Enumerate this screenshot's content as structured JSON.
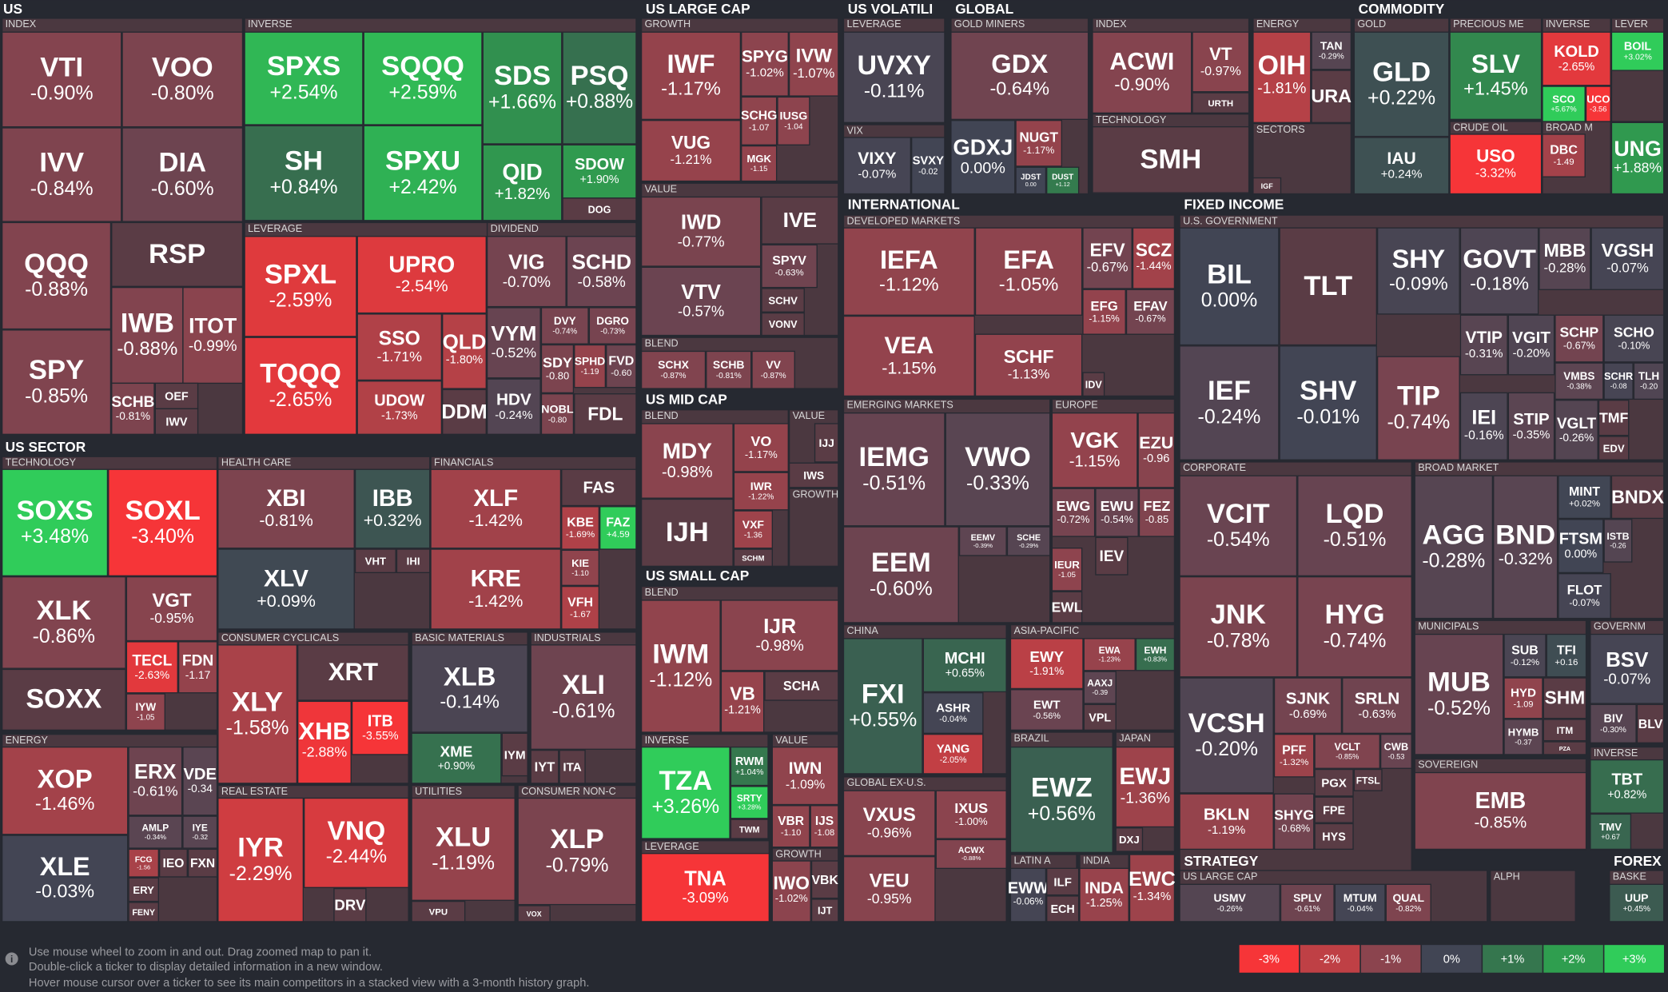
{
  "sections": [
    "US",
    "US SECTOR",
    "US LARGE CAP",
    "US VOLATILI",
    "GLOBAL",
    "COMMODITY",
    "INTERNATIONAL",
    "FIXED INCOME",
    "US MID CAP",
    "US SMALL CAP",
    "STRATEGY",
    "FOREX"
  ],
  "groups": [
    "INDEX",
    "INVERSE",
    "LEVERAGE",
    "DIVIDEND",
    "TECHNOLOGY",
    "HEALTH CARE",
    "FINANCIALS",
    "CONSUMER CYCLICALS",
    "BASIC MATERIALS",
    "INDUSTRIALS",
    "ENERGY",
    "REAL ESTATE",
    "UTILITIES",
    "CONSUMER NON-C",
    "GROWTH",
    "VALUE",
    "BLEND",
    "BLEND",
    "VALUE",
    "GROWTH",
    "BLEND",
    "INVERSE",
    "VALUE",
    "LEVERAGE",
    "GROWTH",
    "LEVERAGE",
    "VIX",
    "GOLD MINERS",
    "INDEX",
    "TECHNOLOGY",
    "ENERGY",
    "SECTORS",
    "GOLD",
    "PRECIOUS ME",
    "INVERSE",
    "LEVER",
    "CRUDE OIL",
    "BROAD M",
    "DEVELOPED MARKETS",
    "EMERGING MARKETS",
    "EUROPE",
    "CHINA",
    "ASIA-PACIFIC",
    "GLOBAL EX-U.S.",
    "BRAZIL",
    "JAPAN",
    "LATIN A",
    "INDIA",
    "U.S. GOVERNMENT",
    "CORPORATE",
    "BROAD MARKET",
    "MUNICIPALS",
    "GOVERNM",
    "SOVEREIGN",
    "INVERSE",
    "US LARGE CAP",
    "ALPH",
    "BASKE"
  ],
  "tiles": [
    {
      "ticker": "VTI",
      "change": "-0.90%"
    },
    {
      "ticker": "VOO",
      "change": "-0.80%"
    },
    {
      "ticker": "IVV",
      "change": "-0.84%"
    },
    {
      "ticker": "DIA",
      "change": "-0.60%"
    },
    {
      "ticker": "QQQ",
      "change": "-0.88%"
    },
    {
      "ticker": "RSP"
    },
    {
      "ticker": "IWB",
      "change": "-0.88%"
    },
    {
      "ticker": "ITOT",
      "change": "-0.99%"
    },
    {
      "ticker": "SPY",
      "change": "-0.85%"
    },
    {
      "ticker": "SCHB",
      "change": "-0.81%"
    },
    {
      "ticker": "OEF"
    },
    {
      "ticker": "IWV"
    },
    {
      "ticker": "SPXS",
      "change": "+2.54%"
    },
    {
      "ticker": "SQQQ",
      "change": "+2.59%"
    },
    {
      "ticker": "SH",
      "change": "+0.84%"
    },
    {
      "ticker": "SPXU",
      "change": "+2.42%"
    },
    {
      "ticker": "SDS",
      "change": "+1.66%"
    },
    {
      "ticker": "PSQ",
      "change": "+0.88%"
    },
    {
      "ticker": "QID",
      "change": "+1.82%"
    },
    {
      "ticker": "SDOW",
      "change": "+1.90%"
    },
    {
      "ticker": "DOG"
    },
    {
      "ticker": "SPXL",
      "change": "-2.59%"
    },
    {
      "ticker": "UPRO",
      "change": "-2.54%"
    },
    {
      "ticker": "TQQQ",
      "change": "-2.65%"
    },
    {
      "ticker": "SSO",
      "change": "-1.71%"
    },
    {
      "ticker": "QLD",
      "change": "-1.80%"
    },
    {
      "ticker": "UDOW",
      "change": "-1.73%"
    },
    {
      "ticker": "DDM"
    },
    {
      "ticker": "VIG",
      "change": "-0.70%"
    },
    {
      "ticker": "SCHD",
      "change": "-0.58%"
    },
    {
      "ticker": "VYM",
      "change": "-0.52%"
    },
    {
      "ticker": "DVY",
      "change": "-0.74%"
    },
    {
      "ticker": "DGRO",
      "change": "-0.73%"
    },
    {
      "ticker": "SDY",
      "change": "-0.80"
    },
    {
      "ticker": "SPHD",
      "change": "-1.19"
    },
    {
      "ticker": "FVD",
      "change": "-0.60"
    },
    {
      "ticker": "HDV",
      "change": "-0.24%"
    },
    {
      "ticker": "NOBL",
      "change": "-0.80"
    },
    {
      "ticker": "FDL"
    },
    {
      "ticker": "SOXS",
      "change": "+3.48%"
    },
    {
      "ticker": "SOXL",
      "change": "-3.40%"
    },
    {
      "ticker": "XLK",
      "change": "-0.86%"
    },
    {
      "ticker": "VGT",
      "change": "-0.95%"
    },
    {
      "ticker": "TECL",
      "change": "-2.63%"
    },
    {
      "ticker": "FDN",
      "change": "-1.17"
    },
    {
      "ticker": "SOXX"
    },
    {
      "ticker": "IYW",
      "change": "-1.05"
    },
    {
      "ticker": "XBI",
      "change": "-0.81%"
    },
    {
      "ticker": "IBB",
      "change": "+0.32%"
    },
    {
      "ticker": "VHT"
    },
    {
      "ticker": "IHI"
    },
    {
      "ticker": "XLV",
      "change": "+0.09%"
    },
    {
      "ticker": "XLF",
      "change": "-1.42%"
    },
    {
      "ticker": "FAS"
    },
    {
      "ticker": "KBE",
      "change": "-1.69%"
    },
    {
      "ticker": "FAZ",
      "change": "+4.59"
    },
    {
      "ticker": "KRE",
      "change": "-1.42%"
    },
    {
      "ticker": "KIE",
      "change": "-1.10"
    },
    {
      "ticker": "VFH",
      "change": "-1.67"
    },
    {
      "ticker": "XLY",
      "change": "-1.58%"
    },
    {
      "ticker": "XRT"
    },
    {
      "ticker": "XHB",
      "change": "-2.88%"
    },
    {
      "ticker": "ITB",
      "change": "-3.55%"
    },
    {
      "ticker": "XLB",
      "change": "-0.14%"
    },
    {
      "ticker": "XME",
      "change": "+0.90%"
    },
    {
      "ticker": "IYM"
    },
    {
      "ticker": "XLI",
      "change": "-0.61%"
    },
    {
      "ticker": "IYT"
    },
    {
      "ticker": "ITA"
    },
    {
      "ticker": "XOP",
      "change": "-1.46%"
    },
    {
      "ticker": "ERX",
      "change": "-0.61%"
    },
    {
      "ticker": "VDE",
      "change": "-0.34"
    },
    {
      "ticker": "AMLP",
      "change": "-0.34%"
    },
    {
      "ticker": "IYE",
      "change": "-0.32"
    },
    {
      "ticker": "XLE",
      "change": "-0.03%"
    },
    {
      "ticker": "FCG",
      "change": "-1.56"
    },
    {
      "ticker": "IEO"
    },
    {
      "ticker": "FXN"
    },
    {
      "ticker": "ERY"
    },
    {
      "ticker": "FENY"
    },
    {
      "ticker": "IYR",
      "change": "-2.29%"
    },
    {
      "ticker": "VNQ",
      "change": "-2.44%"
    },
    {
      "ticker": "DRV"
    },
    {
      "ticker": "XLU",
      "change": "-1.19%"
    },
    {
      "ticker": "VPU"
    },
    {
      "ticker": "XLP",
      "change": "-0.79%"
    },
    {
      "ticker": "VOX"
    },
    {
      "ticker": "IWF",
      "change": "-1.17%"
    },
    {
      "ticker": "SPYG",
      "change": "-1.02%"
    },
    {
      "ticker": "IVW",
      "change": "-1.07%"
    },
    {
      "ticker": "VUG",
      "change": "-1.21%"
    },
    {
      "ticker": "SCHG",
      "change": "-1.07"
    },
    {
      "ticker": "IUSG",
      "change": "-1.04"
    },
    {
      "ticker": "MGK",
      "change": "-1.15"
    },
    {
      "ticker": "IWD",
      "change": "-0.77%"
    },
    {
      "ticker": "IVE"
    },
    {
      "ticker": "SPYV",
      "change": "-0.63%"
    },
    {
      "ticker": "VTV",
      "change": "-0.57%"
    },
    {
      "ticker": "SCHV"
    },
    {
      "ticker": "VONV"
    },
    {
      "ticker": "SCHX",
      "change": "-0.87%"
    },
    {
      "ticker": "SCHB",
      "change": "-0.81%"
    },
    {
      "ticker": "VV",
      "change": "-0.87%"
    },
    {
      "ticker": "MDY",
      "change": "-0.98%"
    },
    {
      "ticker": "VO",
      "change": "-1.17%"
    },
    {
      "ticker": "IWR",
      "change": "-1.22%"
    },
    {
      "ticker": "IJH"
    },
    {
      "ticker": "VXF",
      "change": "-1.36"
    },
    {
      "ticker": "SCHM"
    },
    {
      "ticker": "IJJ"
    },
    {
      "ticker": "IWS"
    },
    {
      "ticker": "IWM",
      "change": "-1.12%"
    },
    {
      "ticker": "IJR",
      "change": "-0.98%"
    },
    {
      "ticker": "VB",
      "change": "-1.21%"
    },
    {
      "ticker": "SCHA"
    },
    {
      "ticker": "TZA",
      "change": "+3.26%"
    },
    {
      "ticker": "RWM",
      "change": "+1.04%"
    },
    {
      "ticker": "SRTY",
      "change": "+3.28%"
    },
    {
      "ticker": "TWM"
    },
    {
      "ticker": "IWN",
      "change": "-1.09%"
    },
    {
      "ticker": "VBR",
      "change": "-1.10"
    },
    {
      "ticker": "IJS",
      "change": "-1.08"
    },
    {
      "ticker": "TNA",
      "change": "-3.09%"
    },
    {
      "ticker": "IWO",
      "change": "-1.02%"
    },
    {
      "ticker": "VBK"
    },
    {
      "ticker": "IJT"
    },
    {
      "ticker": "UVXY",
      "change": "-0.11%"
    },
    {
      "ticker": "VIXY",
      "change": "-0.07%"
    },
    {
      "ticker": "SVXY",
      "change": "-0.02"
    },
    {
      "ticker": "GDX",
      "change": "-0.64%"
    },
    {
      "ticker": "GDXJ",
      "change": "0.00%"
    },
    {
      "ticker": "NUGT",
      "change": "-1.17%"
    },
    {
      "ticker": "JDST",
      "change": "0.00"
    },
    {
      "ticker": "DUST",
      "change": "+1.12"
    },
    {
      "ticker": "ACWI",
      "change": "-0.90%"
    },
    {
      "ticker": "VT",
      "change": "-0.97%"
    },
    {
      "ticker": "URTH"
    },
    {
      "ticker": "SMH"
    },
    {
      "ticker": "OIH",
      "change": "-1.81%"
    },
    {
      "ticker": "TAN",
      "change": "-0.29%"
    },
    {
      "ticker": "URA"
    },
    {
      "ticker": "IGF"
    },
    {
      "ticker": "GLD",
      "change": "+0.22%"
    },
    {
      "ticker": "IAU",
      "change": "+0.24%"
    },
    {
      "ticker": "SLV",
      "change": "+1.45%"
    },
    {
      "ticker": "KOLD",
      "change": "-2.65%"
    },
    {
      "ticker": "SCO",
      "change": "+5.67%"
    },
    {
      "ticker": "UCO",
      "change": "-3.56"
    },
    {
      "ticker": "BOIL",
      "change": "+3.02%"
    },
    {
      "ticker": "USO",
      "change": "-3.32%"
    },
    {
      "ticker": "DBC",
      "change": "-1.49"
    },
    {
      "ticker": "UNG",
      "change": "+1.88%"
    },
    {
      "ticker": "IEFA",
      "change": "-1.12%"
    },
    {
      "ticker": "EFA",
      "change": "-1.05%"
    },
    {
      "ticker": "EFV",
      "change": "-0.67%"
    },
    {
      "ticker": "SCZ",
      "change": "-1.44%"
    },
    {
      "ticker": "EFG",
      "change": "-1.15%"
    },
    {
      "ticker": "EFAV",
      "change": "-0.67%"
    },
    {
      "ticker": "VEA",
      "change": "-1.15%"
    },
    {
      "ticker": "SCHF",
      "change": "-1.13%"
    },
    {
      "ticker": "IDV"
    },
    {
      "ticker": "IEMG",
      "change": "-0.51%"
    },
    {
      "ticker": "VWO",
      "change": "-0.33%"
    },
    {
      "ticker": "EEM",
      "change": "-0.60%"
    },
    {
      "ticker": "EEMV",
      "change": "-0.39%"
    },
    {
      "ticker": "SCHE",
      "change": "-0.29%"
    },
    {
      "ticker": "VGK",
      "change": "-1.15%"
    },
    {
      "ticker": "EZU",
      "change": "-0.96"
    },
    {
      "ticker": "EWG",
      "change": "-0.72%"
    },
    {
      "ticker": "EWU",
      "change": "-0.54%"
    },
    {
      "ticker": "FEZ",
      "change": "-0.85"
    },
    {
      "ticker": "IEUR",
      "change": "-1.05"
    },
    {
      "ticker": "IEV"
    },
    {
      "ticker": "EWL"
    },
    {
      "ticker": "FXI",
      "change": "+0.55%"
    },
    {
      "ticker": "MCHI",
      "change": "+0.65%"
    },
    {
      "ticker": "ASHR",
      "change": "-0.04%"
    },
    {
      "ticker": "YANG",
      "change": "-2.05%"
    },
    {
      "ticker": "EWY",
      "change": "-1.91%"
    },
    {
      "ticker": "EWA",
      "change": "-1.23%"
    },
    {
      "ticker": "EWH",
      "change": "+0.83%"
    },
    {
      "ticker": "AAXJ",
      "change": "-0.39"
    },
    {
      "ticker": "EWT",
      "change": "-0.56%"
    },
    {
      "ticker": "VPL"
    },
    {
      "ticker": "VXUS",
      "change": "-0.96%"
    },
    {
      "ticker": "IXUS",
      "change": "-1.00%"
    },
    {
      "ticker": "ACWX",
      "change": "-0.88%"
    },
    {
      "ticker": "VEU",
      "change": "-0.95%"
    },
    {
      "ticker": "EWZ",
      "change": "+0.56%"
    },
    {
      "ticker": "EWJ",
      "change": "-1.36%"
    },
    {
      "ticker": "DXJ"
    },
    {
      "ticker": "EWW",
      "change": "-0.06%"
    },
    {
      "ticker": "ILF"
    },
    {
      "ticker": "ECH"
    },
    {
      "ticker": "INDA",
      "change": "-1.25%"
    },
    {
      "ticker": "EWC",
      "change": "-1.34%"
    },
    {
      "ticker": "BIL",
      "change": "0.00%"
    },
    {
      "ticker": "TLT"
    },
    {
      "ticker": "SHY",
      "change": "-0.09%"
    },
    {
      "ticker": "GOVT",
      "change": "-0.18%"
    },
    {
      "ticker": "MBB",
      "change": "-0.28%"
    },
    {
      "ticker": "VGSH",
      "change": "-0.07%"
    },
    {
      "ticker": "IEF",
      "change": "-0.24%"
    },
    {
      "ticker": "SHV",
      "change": "-0.01%"
    },
    {
      "ticker": "TIP",
      "change": "-0.74%"
    },
    {
      "ticker": "VTIP",
      "change": "-0.31%"
    },
    {
      "ticker": "VGIT",
      "change": "-0.20%"
    },
    {
      "ticker": "SCHP",
      "change": "-0.67%"
    },
    {
      "ticker": "SCHO",
      "change": "-0.10%"
    },
    {
      "ticker": "VMBS",
      "change": "-0.38%"
    },
    {
      "ticker": "SCHR",
      "change": "-0.08"
    },
    {
      "ticker": "TLH",
      "change": "-0.20"
    },
    {
      "ticker": "IEI",
      "change": "-0.16%"
    },
    {
      "ticker": "STIP",
      "change": "-0.35%"
    },
    {
      "ticker": "VGLT",
      "change": "-0.26%"
    },
    {
      "ticker": "TMF"
    },
    {
      "ticker": "EDV"
    },
    {
      "ticker": "VCIT",
      "change": "-0.54%"
    },
    {
      "ticker": "LQD",
      "change": "-0.51%"
    },
    {
      "ticker": "JNK",
      "change": "-0.78%"
    },
    {
      "ticker": "HYG",
      "change": "-0.74%"
    },
    {
      "ticker": "VCSH",
      "change": "-0.20%"
    },
    {
      "ticker": "SJNK",
      "change": "-0.69%"
    },
    {
      "ticker": "SRLN",
      "change": "-0.63%"
    },
    {
      "ticker": "PFF",
      "change": "-1.32%"
    },
    {
      "ticker": "VCLT",
      "change": "-0.85%"
    },
    {
      "ticker": "CWB",
      "change": "-0.53"
    },
    {
      "ticker": "PGX"
    },
    {
      "ticker": "FTSL"
    },
    {
      "ticker": "BKLN",
      "change": "-1.19%"
    },
    {
      "ticker": "SHYG",
      "change": "-0.68%"
    },
    {
      "ticker": "FPE"
    },
    {
      "ticker": "HYS"
    },
    {
      "ticker": "AGG",
      "change": "-0.28%"
    },
    {
      "ticker": "BND",
      "change": "-0.32%"
    },
    {
      "ticker": "MINT",
      "change": "+0.02%"
    },
    {
      "ticker": "BNDX"
    },
    {
      "ticker": "ISTB",
      "change": "-0.26"
    },
    {
      "ticker": "FTSM",
      "change": "0.00%"
    },
    {
      "ticker": "FLOT",
      "change": "-0.07%"
    },
    {
      "ticker": "MUB",
      "change": "-0.52%"
    },
    {
      "ticker": "SUB",
      "change": "-0.12%"
    },
    {
      "ticker": "TFI",
      "change": "+0.16"
    },
    {
      "ticker": "HYD",
      "change": "-1.09"
    },
    {
      "ticker": "SHM"
    },
    {
      "ticker": "HYMB",
      "change": "-0.37"
    },
    {
      "ticker": "ITM"
    },
    {
      "ticker": "PZA"
    },
    {
      "ticker": "BSV",
      "change": "-0.07%"
    },
    {
      "ticker": "BIV",
      "change": "-0.30%"
    },
    {
      "ticker": "BLV"
    },
    {
      "ticker": "EMB",
      "change": "-0.85%"
    },
    {
      "ticker": "TBT",
      "change": "+0.82%"
    },
    {
      "ticker": "TMV",
      "change": "+0.67"
    },
    {
      "ticker": "USMV",
      "change": "-0.26%"
    },
    {
      "ticker": "SPLV",
      "change": "-0.61%"
    },
    {
      "ticker": "MTUM",
      "change": "-0.04%"
    },
    {
      "ticker": "QUAL",
      "change": "-0.82%"
    },
    {
      "ticker": "UUP",
      "change": "+0.45%"
    }
  ],
  "legend": [
    "-3%",
    "-2%",
    "-1%",
    "0%",
    "+1%",
    "+2%",
    "+3%"
  ],
  "footer": [
    "Use mouse wheel to zoom in and out. Drag zoomed map to pan it.",
    "Double-click a ticker to display detailed information in a new window.",
    "Hover mouse cursor over a ticker to see its main competitors in a stacked view with a 3-month history graph."
  ]
}
